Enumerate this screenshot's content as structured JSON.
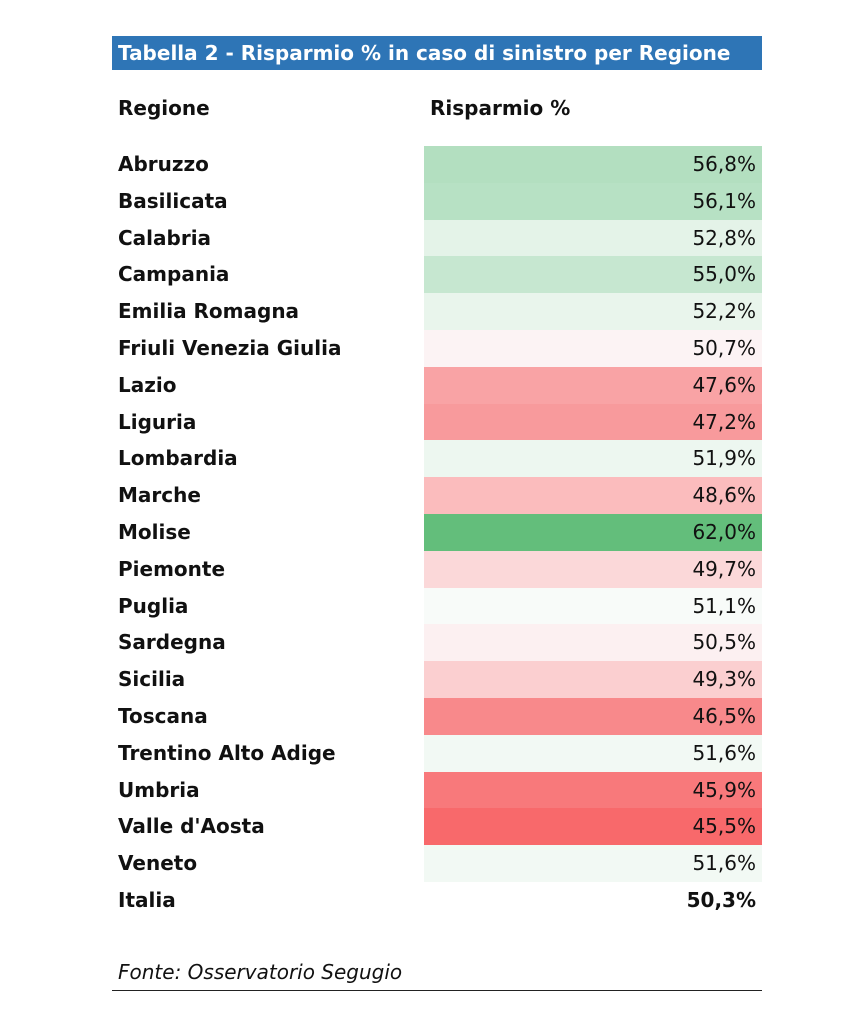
{
  "title": "Tabella 2 - Risparmio % in caso di sinistro per Regione",
  "table": {
    "header": [
      "Regione",
      "Risparmio %"
    ],
    "rows": [
      {
        "region": "Abruzzo",
        "value": "56,8%",
        "color": "#b3dfc0"
      },
      {
        "region": "Basilicata",
        "value": "56,1%",
        "color": "#b7e1c4"
      },
      {
        "region": "Calabria",
        "value": "52,8%",
        "color": "#e4f3e8"
      },
      {
        "region": "Campania",
        "value": "55,0%",
        "color": "#c6e7d0"
      },
      {
        "region": "Emilia Romagna",
        "value": "52,2%",
        "color": "#e9f5ec"
      },
      {
        "region": "Friuli Venezia Giulia",
        "value": "50,7%",
        "color": "#fcf3f4"
      },
      {
        "region": "Lazio",
        "value": "47,6%",
        "color": "#f9a3a5"
      },
      {
        "region": "Liguria",
        "value": "47,2%",
        "color": "#f89a9c"
      },
      {
        "region": "Lombardia",
        "value": "51,9%",
        "color": "#edf7f0"
      },
      {
        "region": "Marche",
        "value": "48,6%",
        "color": "#fbbcbd"
      },
      {
        "region": "Molise",
        "value": "62,0%",
        "color": "#63be7b"
      },
      {
        "region": "Piemonte",
        "value": "49,7%",
        "color": "#fbd8d9"
      },
      {
        "region": "Puglia",
        "value": "51,1%",
        "color": "#f8fbf9"
      },
      {
        "region": "Sardegna",
        "value": "50,5%",
        "color": "#fcf0f1"
      },
      {
        "region": "Sicilia",
        "value": "49,3%",
        "color": "#fbcfd0"
      },
      {
        "region": "Toscana",
        "value": "46,5%",
        "color": "#f8898b"
      },
      {
        "region": "Trentino Alto Adige",
        "value": "51,6%",
        "color": "#f2f9f4"
      },
      {
        "region": "Umbria",
        "value": "45,9%",
        "color": "#f8797b"
      },
      {
        "region": "Valle d'Aosta",
        "value": "45,5%",
        "color": "#f8696b"
      },
      {
        "region": "Veneto",
        "value": "51,6%",
        "color": "#f2f9f4"
      }
    ],
    "total": {
      "region": "Italia",
      "value": "50,3%"
    }
  },
  "source": "Fonte: Osservatorio Segugio"
}
